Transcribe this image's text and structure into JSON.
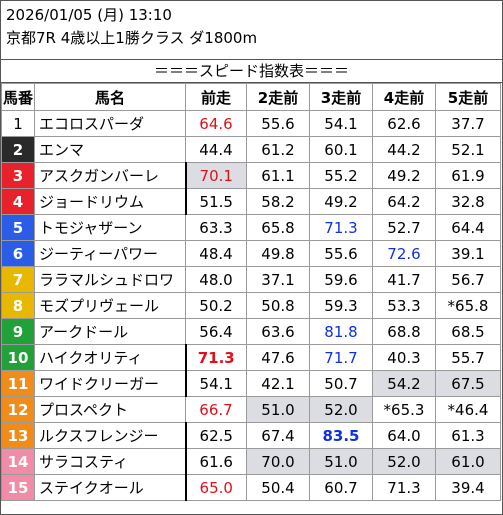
{
  "header": {
    "datetime": "2026/01/05 (月) 13:10",
    "race": "京都7R 4歳以上1勝クラス ダ1800m"
  },
  "subtitle": "＝＝＝スピード指数表＝＝＝",
  "columns": [
    "馬番",
    "馬名",
    "前走",
    "2走前",
    "3走前",
    "4走前",
    "5走前"
  ],
  "colors": {
    "frame1": "#ffffff",
    "frame2": "#2a2a2a",
    "frame3": "#e8222c",
    "frame4": "#2a5ce6",
    "frame5": "#e8b800",
    "frame6": "#22a03a",
    "frame7": "#f08c1a",
    "frame8": "#f08ca8",
    "highlight": "#dcdde3",
    "red_text": "#e0101a",
    "blue_text": "#1030e0"
  },
  "rows": [
    {
      "no": "1",
      "frame": 1,
      "name": "エコロスパーダ",
      "v": [
        "64.6",
        "55.6",
        "54.1",
        "62.6",
        "37.7"
      ],
      "st": [
        "red",
        "",
        "",
        "",
        ""
      ],
      "hl": [
        false,
        false,
        false,
        false,
        false
      ],
      "bl": false
    },
    {
      "no": "2",
      "frame": 2,
      "name": "エンマ",
      "v": [
        "44.4",
        "61.2",
        "60.1",
        "44.2",
        "52.1"
      ],
      "st": [
        "",
        "",
        "",
        "",
        ""
      ],
      "hl": [
        false,
        false,
        false,
        false,
        false
      ],
      "bl": false
    },
    {
      "no": "3",
      "frame": 3,
      "name": "アスクガンバーレ",
      "v": [
        "70.1",
        "61.1",
        "55.2",
        "49.2",
        "61.9"
      ],
      "st": [
        "red",
        "",
        "",
        "",
        ""
      ],
      "hl": [
        true,
        false,
        false,
        false,
        false
      ],
      "bl": true
    },
    {
      "no": "4",
      "frame": 3,
      "name": "ジョードリウム",
      "v": [
        "51.5",
        "58.2",
        "49.2",
        "64.2",
        "32.8"
      ],
      "st": [
        "",
        "",
        "",
        "",
        ""
      ],
      "hl": [
        false,
        false,
        false,
        false,
        false
      ],
      "bl": true
    },
    {
      "no": "5",
      "frame": 4,
      "name": "トモジャザーン",
      "v": [
        "63.3",
        "65.8",
        "71.3",
        "52.7",
        "64.4"
      ],
      "st": [
        "",
        "",
        "blue",
        "",
        ""
      ],
      "hl": [
        false,
        false,
        false,
        false,
        false
      ],
      "bl": false
    },
    {
      "no": "6",
      "frame": 4,
      "name": "ジーティーパワー",
      "v": [
        "48.4",
        "49.8",
        "55.6",
        "72.6",
        "39.1"
      ],
      "st": [
        "",
        "",
        "",
        "blue",
        ""
      ],
      "hl": [
        false,
        false,
        false,
        false,
        false
      ],
      "bl": false
    },
    {
      "no": "7",
      "frame": 5,
      "name": "ララマルシュドロワ",
      "v": [
        "48.0",
        "37.1",
        "59.6",
        "41.7",
        "56.7"
      ],
      "st": [
        "",
        "",
        "",
        "",
        ""
      ],
      "hl": [
        false,
        false,
        false,
        false,
        false
      ],
      "bl": false
    },
    {
      "no": "8",
      "frame": 5,
      "name": "モズプリヴェール",
      "v": [
        "50.2",
        "50.8",
        "59.3",
        "53.3",
        "*65.8"
      ],
      "st": [
        "",
        "",
        "",
        "",
        ""
      ],
      "hl": [
        false,
        false,
        false,
        false,
        false
      ],
      "bl": false
    },
    {
      "no": "9",
      "frame": 6,
      "name": "アークドール",
      "v": [
        "56.4",
        "63.6",
        "81.8",
        "68.8",
        "68.5"
      ],
      "st": [
        "",
        "",
        "blue",
        "",
        ""
      ],
      "hl": [
        false,
        false,
        false,
        false,
        false
      ],
      "bl": false
    },
    {
      "no": "10",
      "frame": 6,
      "name": "ハイクオリティ",
      "v": [
        "71.3",
        "47.6",
        "71.7",
        "40.3",
        "55.7"
      ],
      "st": [
        "redbold",
        "",
        "blue",
        "",
        ""
      ],
      "hl": [
        false,
        false,
        false,
        false,
        false
      ],
      "bl": true
    },
    {
      "no": "11",
      "frame": 7,
      "name": "ワイドクリーガー",
      "v": [
        "54.1",
        "42.1",
        "50.7",
        "54.2",
        "67.5"
      ],
      "st": [
        "",
        "",
        "",
        "",
        ""
      ],
      "hl": [
        false,
        false,
        false,
        true,
        true
      ],
      "bl": true
    },
    {
      "no": "12",
      "frame": 7,
      "name": "プロスペクト",
      "v": [
        "66.7",
        "51.0",
        "52.0",
        "*65.3",
        "*46.4"
      ],
      "st": [
        "red",
        "",
        "",
        "",
        ""
      ],
      "hl": [
        false,
        true,
        true,
        false,
        false
      ],
      "bl": false
    },
    {
      "no": "13",
      "frame": 7,
      "name": "ルクスフレンジー",
      "v": [
        "62.5",
        "67.4",
        "83.5",
        "64.0",
        "61.3"
      ],
      "st": [
        "",
        "",
        "bluebold",
        "",
        ""
      ],
      "hl": [
        false,
        false,
        false,
        false,
        false
      ],
      "bl": true
    },
    {
      "no": "14",
      "frame": 8,
      "name": "サラコスティ",
      "v": [
        "61.6",
        "70.0",
        "51.0",
        "52.0",
        "61.0"
      ],
      "st": [
        "",
        "",
        "",
        "",
        ""
      ],
      "hl": [
        false,
        true,
        true,
        true,
        true
      ],
      "bl": true
    },
    {
      "no": "15",
      "frame": 8,
      "name": "ステイクオール",
      "v": [
        "65.0",
        "50.4",
        "60.7",
        "71.3",
        "39.4"
      ],
      "st": [
        "red",
        "",
        "",
        "",
        ""
      ],
      "hl": [
        false,
        false,
        false,
        false,
        false
      ],
      "bl": true
    }
  ]
}
